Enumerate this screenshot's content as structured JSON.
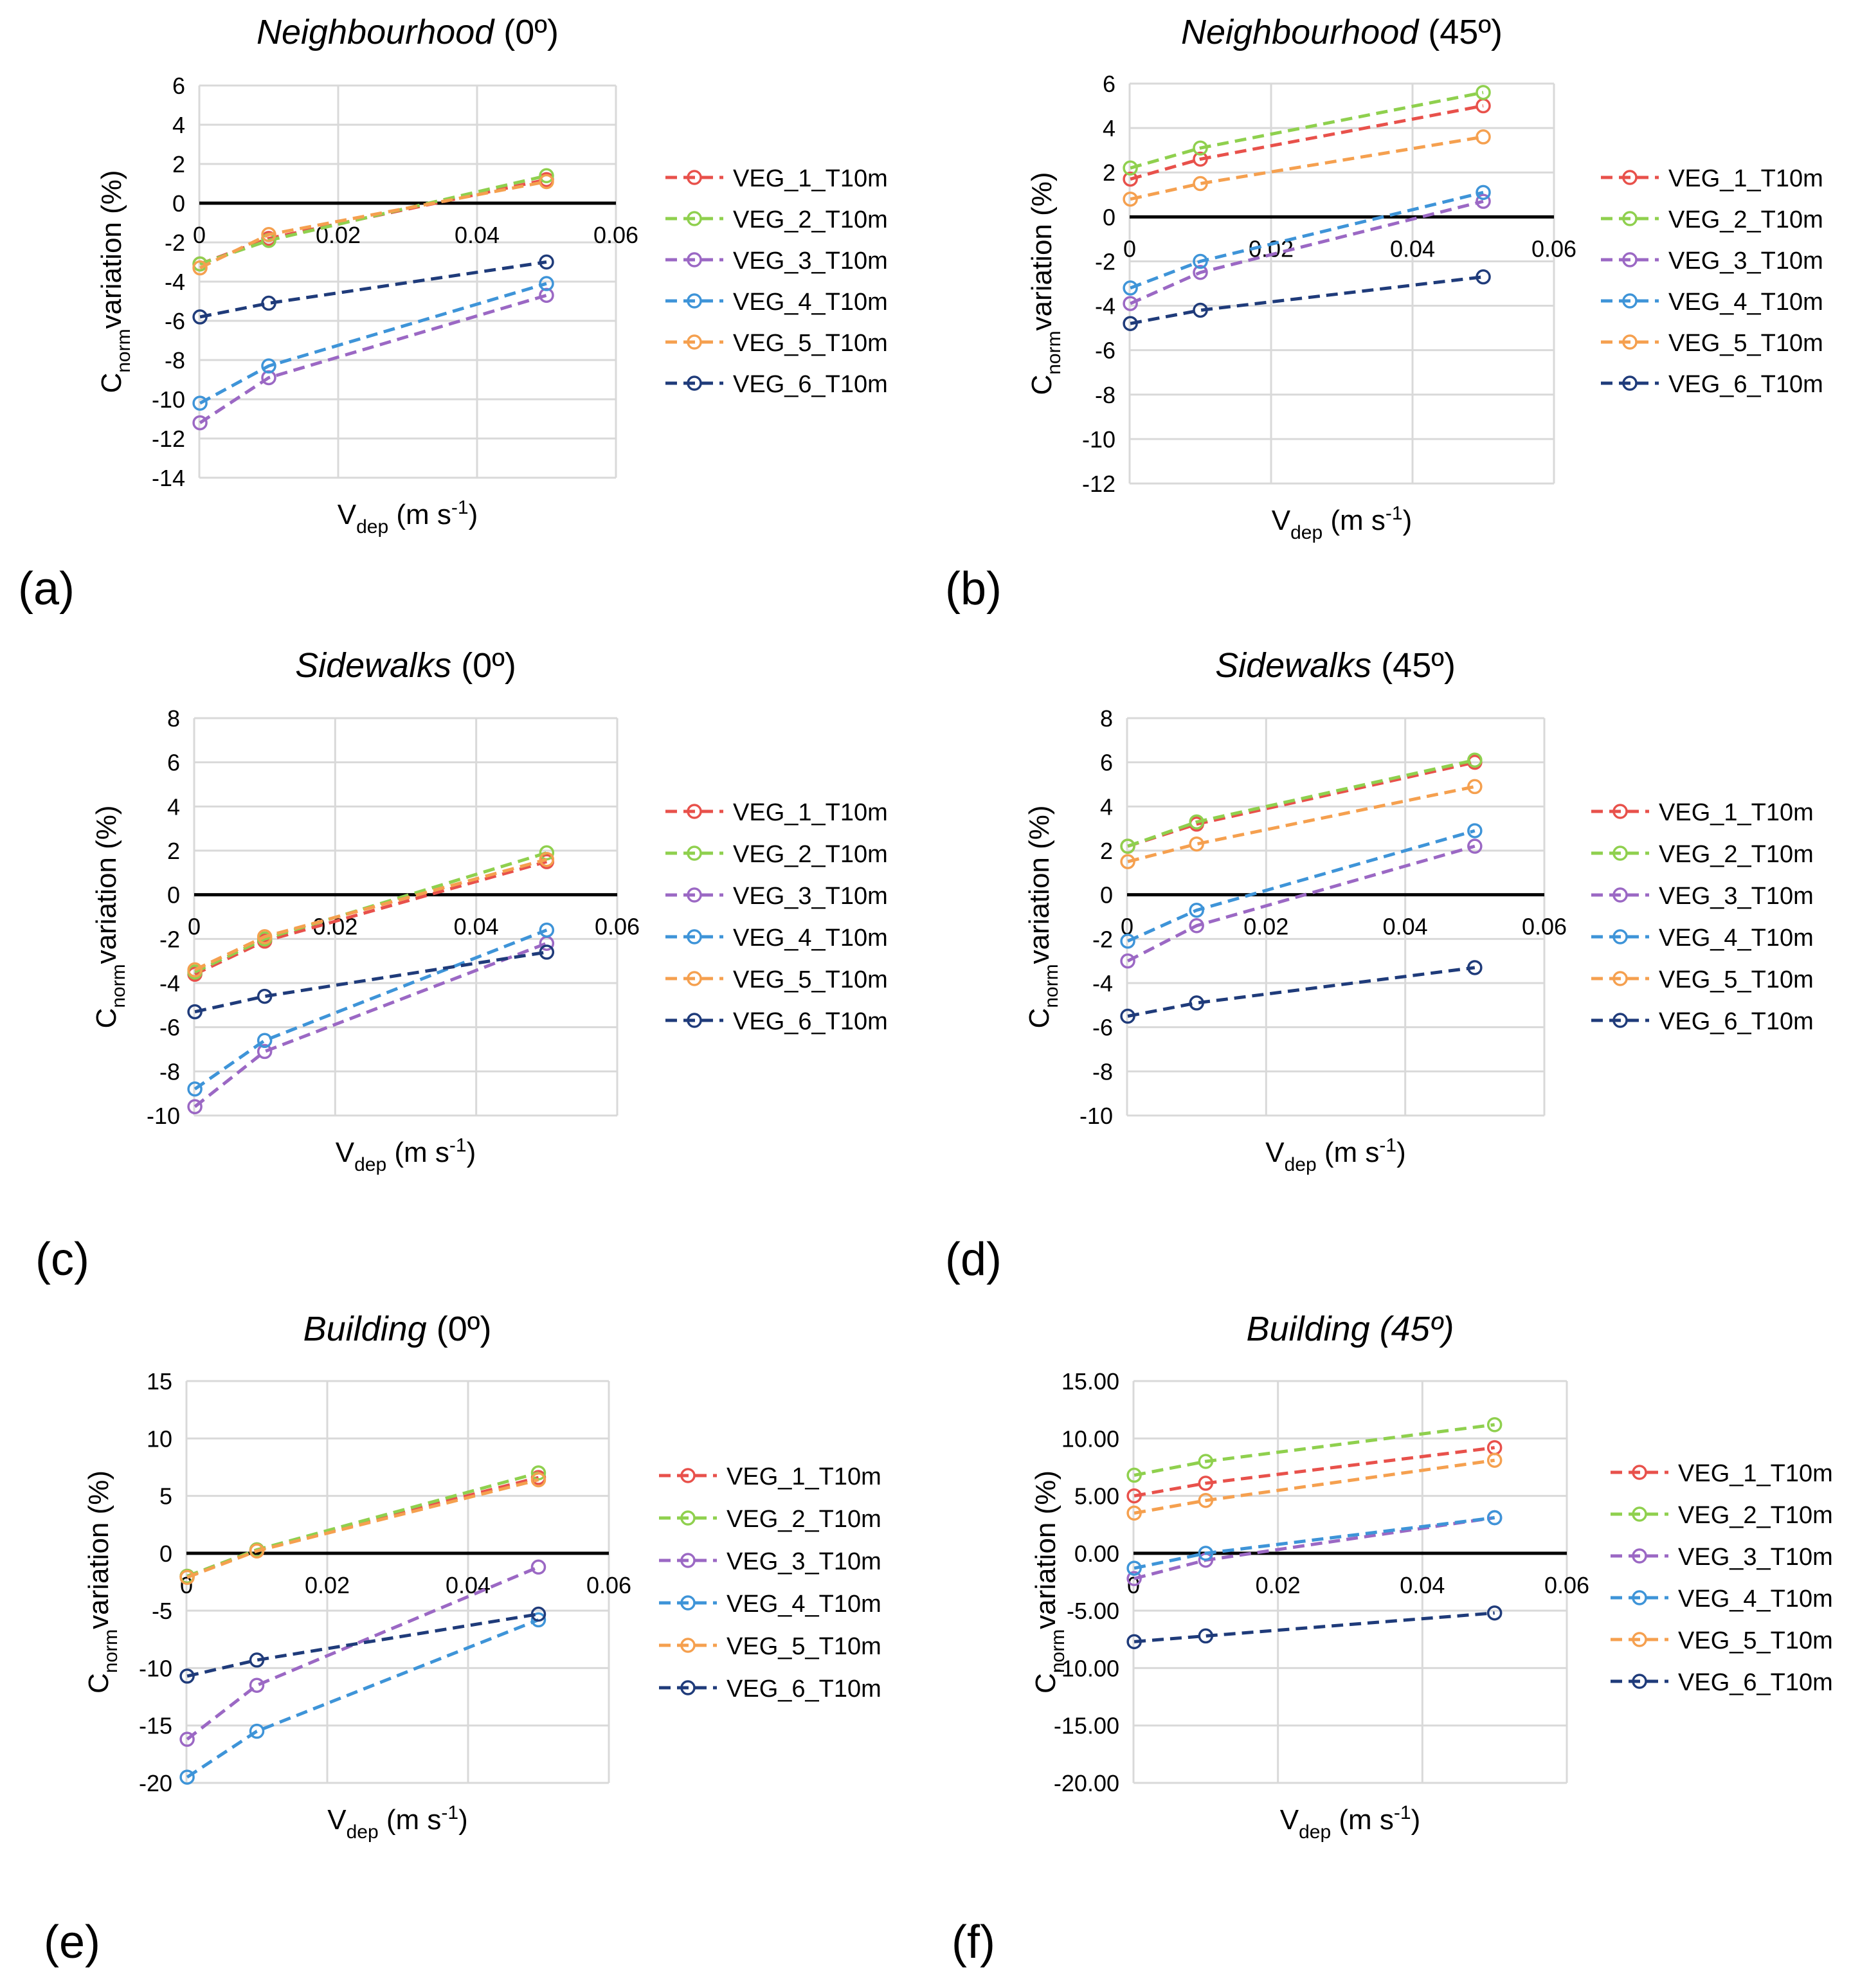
{
  "figure": {
    "x_axis_label": {
      "main": "V",
      "sub": "dep",
      "units": " (m s",
      "sup": "-1",
      "close": ")"
    },
    "y_axis_label": {
      "main": "C",
      "sub": "norm",
      "rest": "variation (%)"
    },
    "x_tick_labels": [
      "0",
      "0.02",
      "0.04",
      "0.06"
    ]
  },
  "chart_data": [
    {
      "panel_label": "(a)",
      "type": "line",
      "title_italic": "Neighbourhood",
      "title_rest": " (0º)",
      "x": [
        0.0001,
        0.01,
        0.05
      ],
      "xlim": [
        0,
        0.06
      ],
      "ylim": [
        -14,
        6
      ],
      "yticks": [
        6,
        4,
        2,
        0,
        -2,
        -4,
        -6,
        -8,
        -10,
        -12,
        -14
      ],
      "ytick_labels": [
        "6",
        "4",
        "2",
        "0",
        "-2",
        "-4",
        "-6",
        "-8",
        "-10",
        "-12",
        "-14"
      ],
      "series": [
        {
          "name": "VEG_1_T10m",
          "color": "#e8514b",
          "values": [
            -3.1,
            -1.8,
            1.2
          ]
        },
        {
          "name": "VEG_2_T10m",
          "color": "#8fd04e",
          "values": [
            -3.1,
            -1.9,
            1.4
          ]
        },
        {
          "name": "VEG_3_T10m",
          "color": "#9b68c4",
          "values": [
            -11.2,
            -8.9,
            -4.7
          ]
        },
        {
          "name": "VEG_4_T10m",
          "color": "#3e94d8",
          "values": [
            -10.2,
            -8.3,
            -4.1
          ]
        },
        {
          "name": "VEG_5_T10m",
          "color": "#f5a04f",
          "values": [
            -3.3,
            -1.6,
            1.1
          ]
        },
        {
          "name": "VEG_6_T10m",
          "color": "#1f3b7a",
          "values": [
            -5.8,
            -5.1,
            -3.0
          ]
        }
      ]
    },
    {
      "panel_label": "(b)",
      "type": "line",
      "title_italic": "Neighbourhood",
      "title_rest": " (45º)",
      "x": [
        0.0001,
        0.01,
        0.05
      ],
      "xlim": [
        0,
        0.06
      ],
      "ylim": [
        -12,
        6
      ],
      "yticks": [
        6,
        4,
        2,
        0,
        -2,
        -4,
        -6,
        -8,
        -10,
        -12
      ],
      "ytick_labels": [
        "6",
        "4",
        "2",
        "0",
        "-2",
        "-4",
        "-6",
        "-8",
        "-10",
        "-12"
      ],
      "series": [
        {
          "name": "VEG_1_T10m",
          "color": "#e8514b",
          "values": [
            1.7,
            2.6,
            5.0
          ]
        },
        {
          "name": "VEG_2_T10m",
          "color": "#8fd04e",
          "values": [
            2.2,
            3.1,
            5.6
          ]
        },
        {
          "name": "VEG_3_T10m",
          "color": "#9b68c4",
          "values": [
            -3.9,
            -2.5,
            0.7
          ]
        },
        {
          "name": "VEG_4_T10m",
          "color": "#3e94d8",
          "values": [
            -3.2,
            -2.0,
            1.1
          ]
        },
        {
          "name": "VEG_5_T10m",
          "color": "#f5a04f",
          "values": [
            0.8,
            1.5,
            3.6
          ]
        },
        {
          "name": "VEG_6_T10m",
          "color": "#1f3b7a",
          "values": [
            -4.8,
            -4.2,
            -2.7
          ]
        }
      ]
    },
    {
      "panel_label": "(c)",
      "type": "line",
      "title_italic": "Sidewalks",
      "title_rest": " (0º)",
      "x": [
        0.0001,
        0.01,
        0.05
      ],
      "xlim": [
        0,
        0.06
      ],
      "ylim": [
        -10,
        8
      ],
      "yticks": [
        8,
        6,
        4,
        2,
        0,
        -2,
        -4,
        -6,
        -8,
        -10
      ],
      "ytick_labels": [
        "8",
        "6",
        "4",
        "2",
        "0",
        "-2",
        "-4",
        "-6",
        "-8",
        "-10"
      ],
      "series": [
        {
          "name": "VEG_1_T10m",
          "color": "#e8514b",
          "values": [
            -3.6,
            -2.1,
            1.5
          ]
        },
        {
          "name": "VEG_2_T10m",
          "color": "#8fd04e",
          "values": [
            -3.5,
            -2.0,
            1.9
          ]
        },
        {
          "name": "VEG_3_T10m",
          "color": "#9b68c4",
          "values": [
            -9.6,
            -7.1,
            -2.2
          ]
        },
        {
          "name": "VEG_4_T10m",
          "color": "#3e94d8",
          "values": [
            -8.8,
            -6.6,
            -1.6
          ]
        },
        {
          "name": "VEG_5_T10m",
          "color": "#f5a04f",
          "values": [
            -3.4,
            -1.9,
            1.6
          ]
        },
        {
          "name": "VEG_6_T10m",
          "color": "#1f3b7a",
          "values": [
            -5.3,
            -4.6,
            -2.6
          ]
        }
      ]
    },
    {
      "panel_label": "(d)",
      "type": "line",
      "title_italic": "Sidewalks",
      "title_rest": " (45º)",
      "x": [
        0.0001,
        0.01,
        0.05
      ],
      "xlim": [
        0,
        0.06
      ],
      "ylim": [
        -10,
        8
      ],
      "yticks": [
        8,
        6,
        4,
        2,
        0,
        -2,
        -4,
        -6,
        -8,
        -10
      ],
      "ytick_labels": [
        "8",
        "6",
        "4",
        "2",
        "0",
        "-2",
        "-4",
        "-6",
        "-8",
        "-10"
      ],
      "series": [
        {
          "name": "VEG_1_T10m",
          "color": "#e8514b",
          "values": [
            2.2,
            3.2,
            6.0
          ]
        },
        {
          "name": "VEG_2_T10m",
          "color": "#8fd04e",
          "values": [
            2.2,
            3.3,
            6.1
          ]
        },
        {
          "name": "VEG_3_T10m",
          "color": "#9b68c4",
          "values": [
            -3.0,
            -1.4,
            2.2
          ]
        },
        {
          "name": "VEG_4_T10m",
          "color": "#3e94d8",
          "values": [
            -2.1,
            -0.7,
            2.9
          ]
        },
        {
          "name": "VEG_5_T10m",
          "color": "#f5a04f",
          "values": [
            1.5,
            2.3,
            4.9
          ]
        },
        {
          "name": "VEG_6_T10m",
          "color": "#1f3b7a",
          "values": [
            -5.5,
            -4.9,
            -3.3
          ]
        }
      ]
    },
    {
      "panel_label": "(e)",
      "type": "line",
      "title_italic": "Building",
      "title_rest": " (0º)",
      "x": [
        0.0001,
        0.01,
        0.05
      ],
      "xlim": [
        0,
        0.06
      ],
      "ylim": [
        -20,
        15
      ],
      "yticks": [
        15,
        10,
        5,
        0,
        -5,
        -10,
        -15,
        -20
      ],
      "ytick_labels": [
        "15",
        "10",
        "5",
        "0",
        "-5",
        "-10",
        "-15",
        "-20"
      ],
      "series": [
        {
          "name": "VEG_1_T10m",
          "color": "#e8514b",
          "values": [
            -2.0,
            0.3,
            6.6
          ]
        },
        {
          "name": "VEG_2_T10m",
          "color": "#8fd04e",
          "values": [
            -2.0,
            0.3,
            7.0
          ]
        },
        {
          "name": "VEG_3_T10m",
          "color": "#9b68c4",
          "values": [
            -16.2,
            -11.5,
            -1.2
          ]
        },
        {
          "name": "VEG_4_T10m",
          "color": "#3e94d8",
          "values": [
            -19.5,
            -15.5,
            -5.8
          ]
        },
        {
          "name": "VEG_5_T10m",
          "color": "#f5a04f",
          "values": [
            -2.1,
            0.2,
            6.4
          ]
        },
        {
          "name": "VEG_6_T10m",
          "color": "#1f3b7a",
          "values": [
            -10.7,
            -9.3,
            -5.3
          ]
        }
      ]
    },
    {
      "panel_label": "(f)",
      "type": "line",
      "title_italic": "Building (45º)",
      "title_rest": "",
      "x": [
        0.0001,
        0.01,
        0.05
      ],
      "xlim": [
        0,
        0.06
      ],
      "ylim": [
        -20,
        15
      ],
      "yticks": [
        15,
        10,
        5,
        0,
        -5,
        -10,
        -15,
        -20
      ],
      "ytick_labels": [
        "15.00",
        "10.00",
        "5.00",
        "0.00",
        "-5.00",
        "-10.00",
        "-15.00",
        "-20.00"
      ],
      "series": [
        {
          "name": "VEG_1_T10m",
          "color": "#e8514b",
          "values": [
            5.0,
            6.1,
            9.2
          ]
        },
        {
          "name": "VEG_2_T10m",
          "color": "#8fd04e",
          "values": [
            6.8,
            8.0,
            11.2
          ]
        },
        {
          "name": "VEG_3_T10m",
          "color": "#9b68c4",
          "values": [
            -2.2,
            -0.6,
            3.1
          ]
        },
        {
          "name": "VEG_4_T10m",
          "color": "#3e94d8",
          "values": [
            -1.3,
            0.0,
            3.1
          ]
        },
        {
          "name": "VEG_5_T10m",
          "color": "#f5a04f",
          "values": [
            3.5,
            4.6,
            8.1
          ]
        },
        {
          "name": "VEG_6_T10m",
          "color": "#1f3b7a",
          "values": [
            -7.7,
            -7.2,
            -5.2
          ]
        }
      ]
    }
  ]
}
